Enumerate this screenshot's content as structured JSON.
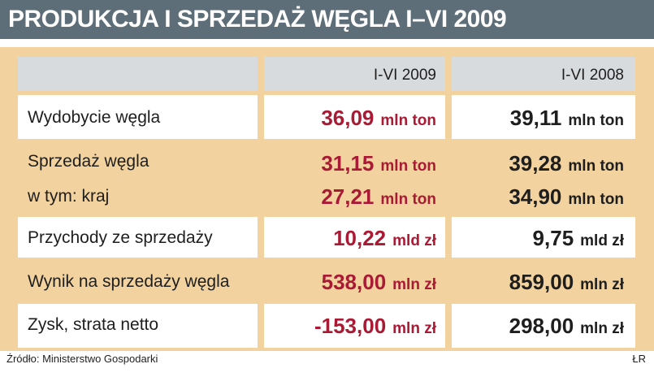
{
  "title": "PRODUKCJA I SPRZEDAŻ WĘGLA I–VI 2009",
  "headers": {
    "col2009": "I-VI 2009",
    "col2008": "I-VI 2008"
  },
  "rows": [
    {
      "label": "Wydobycie węgla",
      "v2009": {
        "num": "36,09",
        "unit": "mln ton"
      },
      "v2008": {
        "num": "39,11",
        "unit": "mln ton"
      }
    },
    {
      "label": "Sprzedaż węgla",
      "v2009": {
        "num": "31,15",
        "unit": "mln ton"
      },
      "v2008": {
        "num": "39,28",
        "unit": "mln ton"
      }
    },
    {
      "label": "w tym: kraj",
      "v2009": {
        "num": "27,21",
        "unit": "mln ton"
      },
      "v2008": {
        "num": "34,90",
        "unit": "mln ton"
      }
    },
    {
      "label": "Przychody ze sprzedaży",
      "v2009": {
        "num": "10,22",
        "unit": "mld zł"
      },
      "v2008": {
        "num": "9,75",
        "unit": "mld zł"
      }
    },
    {
      "label": "Wynik na sprzedaży węgla",
      "v2009": {
        "num": "538,00",
        "unit": "mln zł"
      },
      "v2008": {
        "num": "859,00",
        "unit": "mln zł"
      }
    },
    {
      "label": "Zysk, strata netto",
      "v2009": {
        "num": "-153,00",
        "unit": "mln zł"
      },
      "v2008": {
        "num": "298,00",
        "unit": "mln zł"
      }
    }
  ],
  "footer": {
    "source": "Źródło: Ministerstwo Gospodarki",
    "credit": "ŁR"
  },
  "colors": {
    "title_bg": "#5e6e78",
    "panel": "#f2d29e",
    "header_bg": "#d8dbde",
    "accent_red": "#a91a34"
  }
}
